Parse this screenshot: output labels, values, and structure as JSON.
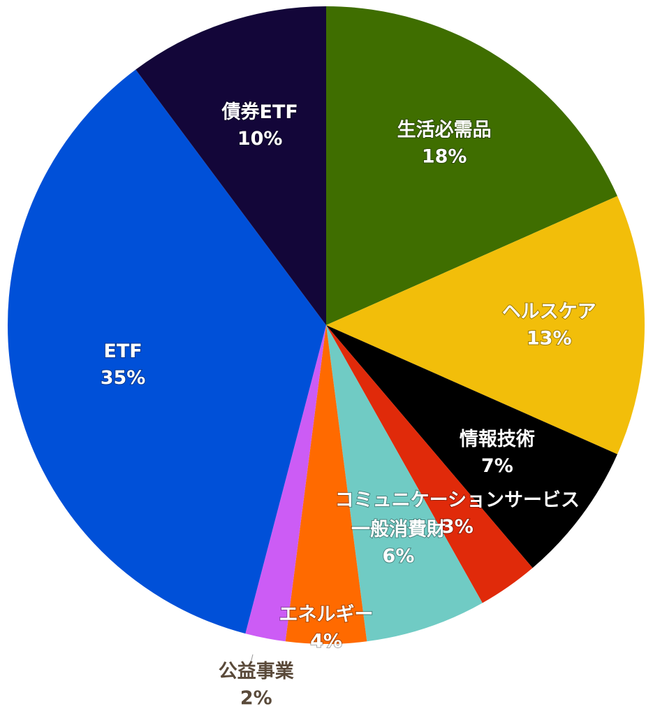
{
  "chart_data": {
    "type": "pie",
    "categories": [
      "生活必需品",
      "ヘルスケア",
      "情報技術",
      "コミュニケーションサービス",
      "一般消費財",
      "エネルギー",
      "公益事業",
      "ETF",
      "債券ETF"
    ],
    "values": [
      18,
      13,
      7,
      3,
      6,
      4,
      2,
      35,
      10
    ],
    "value_labels": [
      "18%",
      "13%",
      "7%",
      "3%",
      "6%",
      "4%",
      "2%",
      "35%",
      "10%"
    ],
    "colors": [
      "#3f6e00",
      "#f2be0a",
      "#000000",
      "#e02a0a",
      "#70cbc4",
      "#ff6a00",
      "#cc5cf5",
      "#0050d8",
      "#130639"
    ]
  }
}
